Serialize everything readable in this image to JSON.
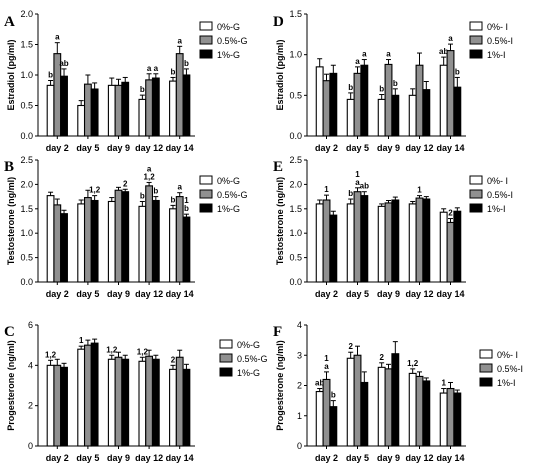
{
  "colors": {
    "g0": "#ffffff",
    "g05": "#909090",
    "g1": "#000000",
    "axis": "#000000"
  },
  "chart_data": [
    {
      "type": "bar",
      "panel": "A",
      "ylabel": "Estradiol (pg/ml)",
      "categories": [
        "day 2",
        "day 5",
        "day 9",
        "day 12",
        "day 14"
      ],
      "ylim": [
        0,
        2.0
      ],
      "yticks": [
        "0.0",
        "0.5",
        "1.0",
        "1.5",
        "2.0"
      ],
      "series": [
        {
          "name": "0%-G",
          "values": [
            0.83,
            0.5,
            0.83,
            0.6,
            0.9
          ],
          "errors": [
            0.08,
            0.08,
            0.12,
            0.07,
            0.06
          ]
        },
        {
          "name": "0.5%-G",
          "values": [
            1.35,
            0.85,
            0.83,
            0.92,
            1.35
          ],
          "errors": [
            0.18,
            0.15,
            0.1,
            0.1,
            0.12
          ]
        },
        {
          "name": "1%-G",
          "values": [
            0.98,
            0.77,
            0.88,
            0.95,
            1.0
          ],
          "errors": [
            0.12,
            0.1,
            0.08,
            0.07,
            0.1
          ]
        }
      ],
      "annotations": [
        [
          "b",
          "a",
          "ab"
        ],
        [
          "",
          "",
          ""
        ],
        [
          "",
          "",
          ""
        ],
        [
          "b",
          "a",
          "a"
        ],
        [
          "b",
          "a",
          "b"
        ]
      ]
    },
    {
      "type": "bar",
      "panel": "D",
      "ylabel": "Estradiol (pg/ml)",
      "categories": [
        "day 2",
        "day 5",
        "day 9",
        "day 12",
        "day 14"
      ],
      "ylim": [
        0,
        1.5
      ],
      "yticks": [
        "0.0",
        "0.5",
        "1.0",
        "1.5"
      ],
      "series": [
        {
          "name": "0%- I",
          "values": [
            0.85,
            0.45,
            0.45,
            0.5,
            0.87
          ],
          "errors": [
            0.1,
            0.08,
            0.06,
            0.08,
            0.1
          ]
        },
        {
          "name": "0.5%-I",
          "values": [
            0.68,
            0.77,
            0.88,
            0.87,
            1.05
          ],
          "errors": [
            0.08,
            0.08,
            0.06,
            0.15,
            0.08
          ]
        },
        {
          "name": "1%-I",
          "values": [
            0.77,
            0.87,
            0.5,
            0.57,
            0.6
          ],
          "errors": [
            0.1,
            0.07,
            0.08,
            0.1,
            0.12
          ]
        }
      ],
      "annotations": [
        [
          "",
          "",
          ""
        ],
        [
          "b",
          "a",
          "a"
        ],
        [
          "b",
          "a",
          "b"
        ],
        [
          "",
          "",
          ""
        ],
        [
          "ab",
          "a",
          "b"
        ]
      ]
    },
    {
      "type": "bar",
      "panel": "B",
      "ylabel": "Testosterone (ng/ml)",
      "categories": [
        "day 2",
        "day 5",
        "day 9",
        "day 12",
        "day 14"
      ],
      "ylim": [
        0,
        2.5
      ],
      "yticks": [
        "0.0",
        "0.5",
        "1.0",
        "1.5",
        "2.0",
        "2.5"
      ],
      "series": [
        {
          "name": "0%-G",
          "values": [
            1.77,
            1.6,
            1.65,
            1.55,
            1.5
          ],
          "errors": [
            0.07,
            0.08,
            0.08,
            0.1,
            0.07
          ]
        },
        {
          "name": "0.5%-G",
          "values": [
            1.58,
            1.73,
            1.88,
            1.97,
            1.75
          ],
          "errors": [
            0.12,
            0.15,
            0.06,
            0.07,
            0.08
          ]
        },
        {
          "name": "1%-G",
          "values": [
            1.4,
            1.67,
            1.85,
            1.67,
            1.33
          ],
          "errors": [
            0.07,
            0.1,
            0.05,
            0.08,
            0.06
          ]
        }
      ],
      "annotations": [
        [
          "",
          "",
          ""
        ],
        [
          "",
          "",
          "1,2"
        ],
        [
          "",
          "",
          "2"
        ],
        [
          "b",
          "a\n1,2",
          "b"
        ],
        [
          "b",
          "a",
          "1\nb"
        ]
      ]
    },
    {
      "type": "bar",
      "panel": "E",
      "ylabel": "Testosterone (ng/ml)",
      "categories": [
        "day 2",
        "day 5",
        "day 9",
        "day 12",
        "day 14"
      ],
      "ylim": [
        0,
        2.5
      ],
      "yticks": [
        "0.0",
        "0.5",
        "1.0",
        "1.5",
        "2.0",
        "2.5"
      ],
      "series": [
        {
          "name": "0%- I",
          "values": [
            1.6,
            1.6,
            1.55,
            1.6,
            1.43
          ],
          "errors": [
            0.08,
            0.1,
            0.05,
            0.05,
            0.07
          ]
        },
        {
          "name": "0.5%-I",
          "values": [
            1.68,
            1.85,
            1.62,
            1.72,
            1.22
          ],
          "errors": [
            0.1,
            0.08,
            0.05,
            0.05,
            0.08
          ]
        },
        {
          "name": "1%-I",
          "values": [
            1.37,
            1.77,
            1.68,
            1.7,
            1.45
          ],
          "errors": [
            0.08,
            0.08,
            0.06,
            0.05,
            0.07
          ]
        }
      ],
      "annotations": [
        [
          "",
          "1",
          ""
        ],
        [
          "b",
          "1\na",
          "ab"
        ],
        [
          "",
          "",
          ""
        ],
        [
          "",
          "1",
          ""
        ],
        [
          "",
          "2",
          ""
        ]
      ]
    },
    {
      "type": "bar",
      "panel": "C",
      "ylabel": "Progesterone (ng/ml)",
      "categories": [
        "day 2",
        "day 5",
        "day 9",
        "day 12",
        "day 14"
      ],
      "ylim": [
        0,
        6
      ],
      "yticks": [
        "0",
        "2",
        "4",
        "6"
      ],
      "series": [
        {
          "name": "0%-G",
          "values": [
            4.0,
            4.8,
            4.3,
            4.2,
            3.8
          ],
          "errors": [
            0.25,
            0.15,
            0.2,
            0.2,
            0.2
          ]
        },
        {
          "name": "0.5%-G",
          "values": [
            4.0,
            5.0,
            4.4,
            4.45,
            4.4
          ],
          "errors": [
            0.3,
            0.25,
            0.25,
            0.3,
            0.35
          ]
        },
        {
          "name": "1%-G",
          "values": [
            3.9,
            5.1,
            4.3,
            4.3,
            3.8
          ],
          "errors": [
            0.2,
            0.2,
            0.2,
            0.2,
            0.25
          ]
        }
      ],
      "annotations": [
        [
          "1,2",
          "",
          ""
        ],
        [
          "1",
          "",
          ""
        ],
        [
          "1,2",
          "",
          ""
        ],
        [
          "1,2",
          "",
          ""
        ],
        [
          "2",
          "",
          ""
        ]
      ]
    },
    {
      "type": "bar",
      "panel": "F",
      "ylabel": "Progesterone (ng/ml)",
      "categories": [
        "day 2",
        "day 5",
        "day 9",
        "day 12",
        "day 14"
      ],
      "ylim": [
        0,
        4
      ],
      "yticks": [
        "0",
        "1",
        "2",
        "3",
        "4"
      ],
      "series": [
        {
          "name": "0%- I",
          "values": [
            1.8,
            2.9,
            2.6,
            2.4,
            1.75
          ],
          "errors": [
            0.1,
            0.2,
            0.15,
            0.15,
            0.15
          ]
        },
        {
          "name": "0.5%-I",
          "values": [
            2.2,
            3.0,
            2.55,
            2.3,
            1.9
          ],
          "errors": [
            0.25,
            0.3,
            0.15,
            0.15,
            0.2
          ]
        },
        {
          "name": "1%-I",
          "values": [
            1.3,
            2.1,
            3.05,
            2.15,
            1.75
          ],
          "errors": [
            0.2,
            0.35,
            0.4,
            0.1,
            0.1
          ]
        }
      ],
      "annotations": [
        [
          "ab",
          "1\na",
          "b"
        ],
        [
          "2",
          "",
          ""
        ],
        [
          "2",
          "",
          ""
        ],
        [
          "1,2",
          "",
          ""
        ],
        [
          "1",
          "",
          ""
        ]
      ]
    }
  ]
}
